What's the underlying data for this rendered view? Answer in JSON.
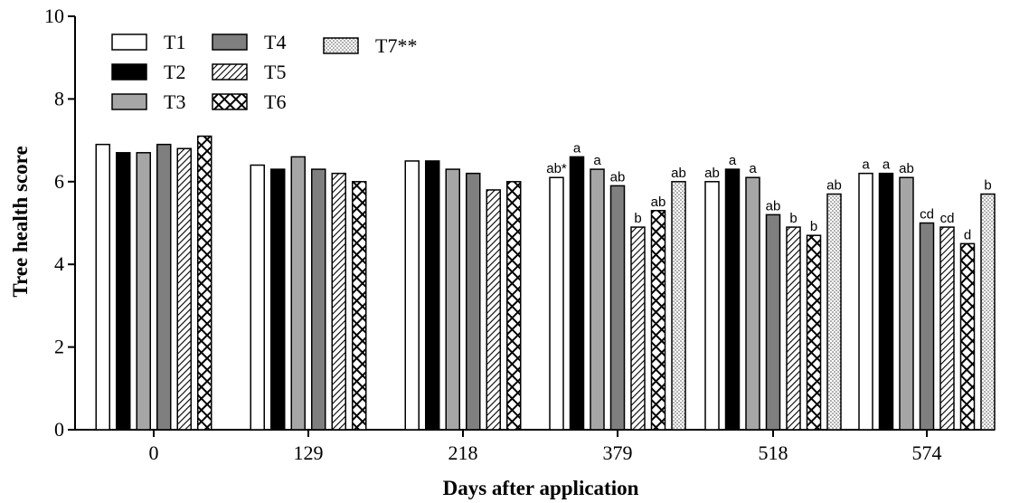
{
  "chart_data": {
    "type": "bar",
    "title": "",
    "xlabel": "Days after application",
    "ylabel": "Tree health score",
    "ylim": [
      0,
      10
    ],
    "yticks": [
      "0",
      "2",
      "4",
      "6",
      "8",
      "10"
    ],
    "grid": false,
    "legend_position": "top-left",
    "categories": [
      "0",
      "129",
      "218",
      "379",
      "518",
      "574"
    ],
    "series": [
      {
        "name": "T1",
        "fill": "white",
        "values": [
          6.9,
          6.4,
          6.5,
          6.1,
          6.0,
          6.2
        ],
        "labels": [
          "",
          "",
          "",
          "ab*",
          "ab",
          "a"
        ]
      },
      {
        "name": "T2",
        "fill": "black",
        "values": [
          6.7,
          6.3,
          6.5,
          6.6,
          6.3,
          6.2
        ],
        "labels": [
          "",
          "",
          "",
          "a",
          "a",
          "a"
        ]
      },
      {
        "name": "T3",
        "fill": "light-gray",
        "values": [
          6.7,
          6.6,
          6.3,
          6.3,
          6.1,
          6.1
        ],
        "labels": [
          "",
          "",
          "",
          "a",
          "a",
          "ab"
        ]
      },
      {
        "name": "T4",
        "fill": "dark-gray",
        "values": [
          6.9,
          6.3,
          6.2,
          5.9,
          5.2,
          5.0
        ],
        "labels": [
          "",
          "",
          "",
          "ab",
          "ab",
          "cd"
        ]
      },
      {
        "name": "T5",
        "fill": "diagonal-hatch",
        "values": [
          6.8,
          6.2,
          5.8,
          4.9,
          4.9,
          4.9
        ],
        "labels": [
          "",
          "",
          "",
          "b",
          "b",
          "cd"
        ]
      },
      {
        "name": "T6",
        "fill": "cross-hatch",
        "values": [
          7.1,
          6.0,
          6.0,
          5.3,
          4.7,
          4.5
        ],
        "labels": [
          "",
          "",
          "",
          "ab",
          "b",
          "d"
        ]
      },
      {
        "name": "T7**",
        "fill": "dotted",
        "values": [
          null,
          null,
          null,
          6.0,
          5.7,
          5.7
        ],
        "labels": [
          "",
          "",
          "",
          "ab",
          "ab",
          "b"
        ]
      }
    ],
    "colors": {
      "axis": "#000000",
      "light_gray": "#a6a6a6",
      "dark_gray": "#7f7f7f",
      "black": "#000000",
      "white": "#ffffff"
    }
  }
}
